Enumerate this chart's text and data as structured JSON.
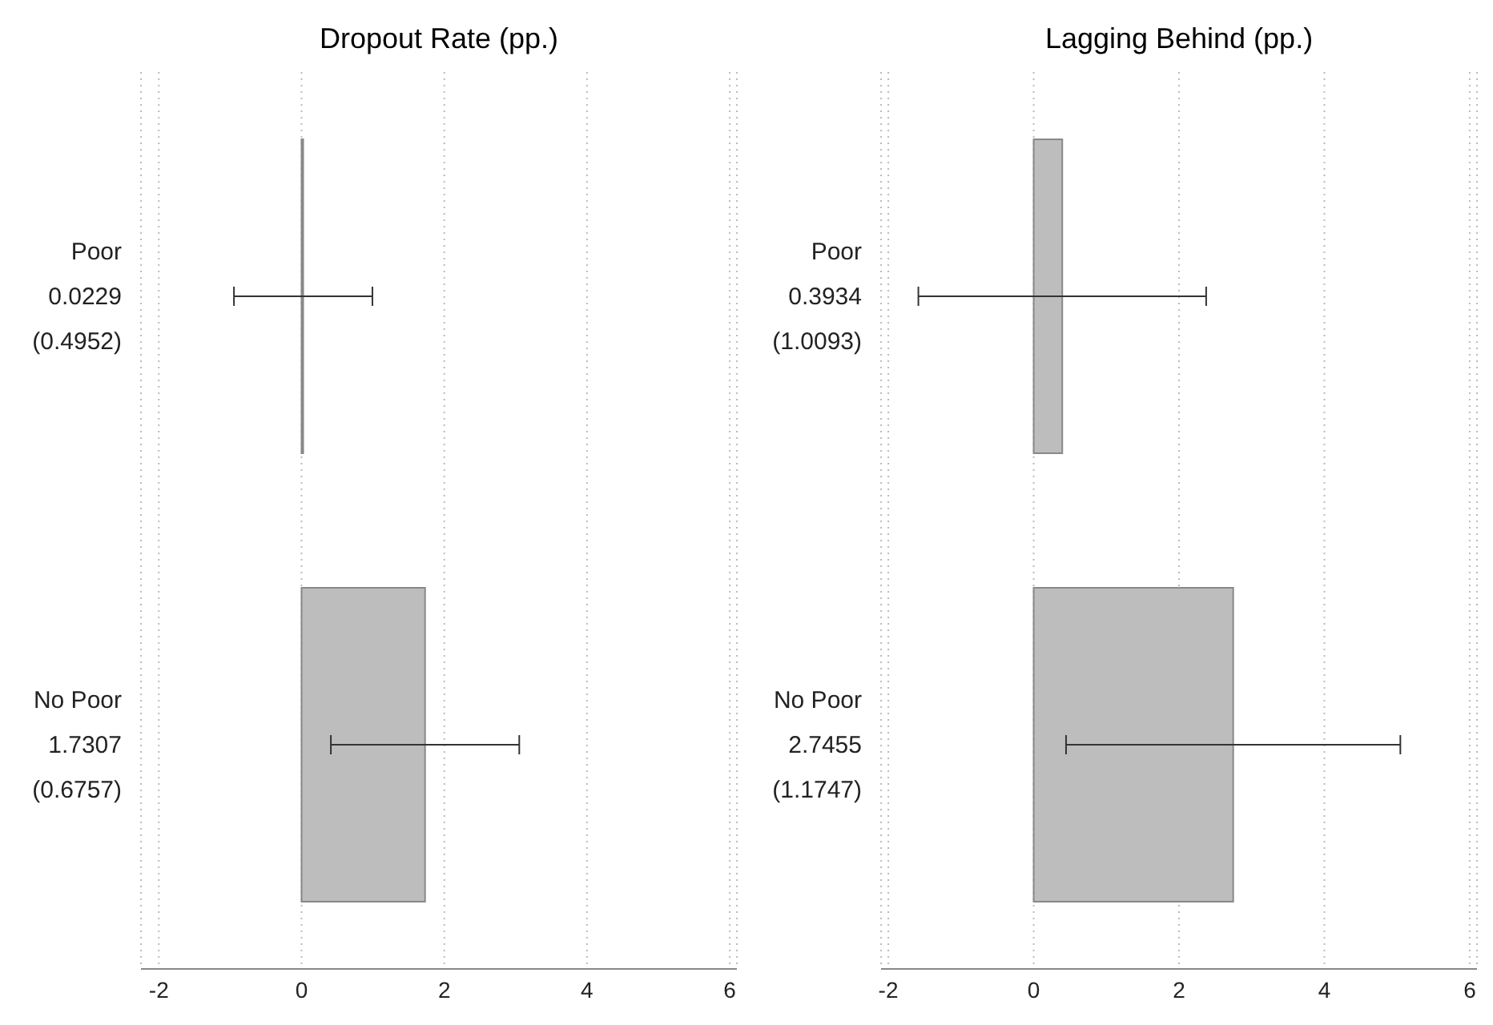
{
  "chart_data": [
    {
      "type": "bar",
      "orientation": "horizontal",
      "title": "Dropout Rate (pp.)",
      "categories": [
        "Poor",
        "No Poor"
      ],
      "values": [
        0.0229,
        1.7307
      ],
      "errors": [
        0.97,
        1.32
      ],
      "value_labels": [
        "0.0229",
        "1.7307"
      ],
      "annotations": [
        "(0.4952)",
        "(0.6757)"
      ],
      "color": "#bdbdbd",
      "xlim": [
        -2.25,
        6.1
      ],
      "xticks": [
        -2,
        0,
        2,
        4,
        6
      ],
      "grid": "x"
    },
    {
      "type": "bar",
      "orientation": "horizontal",
      "title": "Lagging Behind (pp.)",
      "categories": [
        "Poor",
        "No Poor"
      ],
      "values": [
        0.3934,
        2.7455
      ],
      "errors": [
        1.98,
        2.3
      ],
      "value_labels": [
        "0.3934",
        "2.7455"
      ],
      "annotations": [
        "(1.0093)",
        "(1.1747)"
      ],
      "color": "#bdbdbd",
      "xlim": [
        -2.1,
        6.1
      ],
      "xticks": [
        -2,
        0,
        2,
        4,
        6
      ],
      "grid": "x"
    }
  ]
}
